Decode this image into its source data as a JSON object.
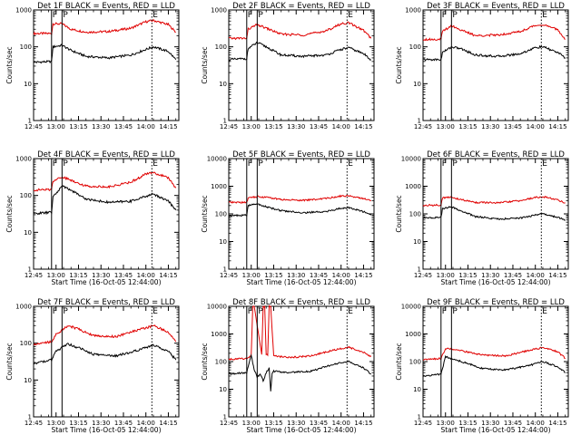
{
  "figure": {
    "n_panels": 9,
    "colors": {
      "events": "#000000",
      "lld": "#e00000",
      "background": "#ffffff",
      "axes": "#000000"
    },
    "stroke_style": {
      "marker_lines_F_P": "solid",
      "marker_line_E": "dotted"
    }
  },
  "chart_data": [
    {
      "type": "line",
      "title": "Det 1F BLACK = Events, RED = LLD",
      "xlabel": "",
      "ylabel": "Counts/sec",
      "x_ticks": [
        "12:45",
        "13:00",
        "13:15",
        "13:30",
        "13:45",
        "14:00",
        "14:15"
      ],
      "xlim": [
        "12:45",
        "14:22"
      ],
      "y_scale": "log",
      "ylim": [
        1,
        1000
      ],
      "y_ticks": [
        "1",
        "10",
        "100",
        "1000"
      ],
      "markers": [
        {
          "label": "F",
          "time": "12:57"
        },
        {
          "label": "P",
          "time": "13:04"
        },
        {
          "label": "E",
          "time": "14:04"
        }
      ],
      "series": [
        {
          "x": [
            "12:45",
            "12:57",
            "12:58",
            "13:04",
            "13:10",
            "13:20",
            "13:35",
            "13:50",
            "14:00",
            "14:05",
            "14:15",
            "14:20"
          ],
          "values": [
            230,
            230,
            420,
            420,
            300,
            250,
            260,
            320,
            480,
            520,
            400,
            250
          ]
        },
        {
          "x": [
            "12:45",
            "12:57",
            "12:58",
            "13:04",
            "13:10",
            "13:20",
            "13:35",
            "13:50",
            "14:00",
            "14:05",
            "14:15",
            "14:20"
          ],
          "values": [
            38,
            40,
            100,
            110,
            80,
            55,
            50,
            60,
            85,
            100,
            75,
            45
          ]
        }
      ]
    },
    {
      "type": "line",
      "title": "Det 2F BLACK = Events, RED = LLD",
      "xlabel": "",
      "ylabel": "Counts/sec",
      "x_ticks": [
        "12:45",
        "13:00",
        "13:15",
        "13:30",
        "13:45",
        "14:00",
        "14:15"
      ],
      "xlim": [
        "12:45",
        "14:22"
      ],
      "y_scale": "log",
      "ylim": [
        1,
        1000
      ],
      "y_ticks": [
        "1",
        "10",
        "100",
        "1000"
      ],
      "markers": [
        {
          "label": "F",
          "time": "12:57"
        },
        {
          "label": "P",
          "time": "13:04"
        },
        {
          "label": "E",
          "time": "14:04"
        }
      ],
      "series": [
        {
          "x": [
            "12:45",
            "12:57",
            "12:58",
            "13:04",
            "13:10",
            "13:20",
            "13:35",
            "13:50",
            "14:00",
            "14:05",
            "14:15",
            "14:20"
          ],
          "values": [
            170,
            170,
            300,
            400,
            320,
            220,
            210,
            270,
            420,
            450,
            280,
            170
          ]
        },
        {
          "x": [
            "12:45",
            "12:57",
            "12:58",
            "13:04",
            "13:10",
            "13:20",
            "13:35",
            "13:50",
            "14:00",
            "14:05",
            "14:15",
            "14:20"
          ],
          "values": [
            45,
            48,
            90,
            130,
            100,
            60,
            55,
            60,
            85,
            95,
            65,
            45
          ]
        }
      ]
    },
    {
      "type": "line",
      "title": "Det 3F BLACK = Events, RED = LLD",
      "xlabel": "",
      "ylabel": "Counts/sec",
      "x_ticks": [
        "12:45",
        "13:00",
        "13:15",
        "13:30",
        "13:45",
        "14:00",
        "14:15"
      ],
      "xlim": [
        "12:45",
        "14:22"
      ],
      "y_scale": "log",
      "ylim": [
        1,
        1000
      ],
      "y_ticks": [
        "1",
        "10",
        "100",
        "1000"
      ],
      "markers": [
        {
          "label": "F",
          "time": "12:57"
        },
        {
          "label": "P",
          "time": "13:04"
        },
        {
          "label": "E",
          "time": "14:04"
        }
      ],
      "series": [
        {
          "x": [
            "12:45",
            "12:57",
            "12:58",
            "13:04",
            "13:10",
            "13:20",
            "13:35",
            "13:50",
            "14:00",
            "14:05",
            "14:15",
            "14:20"
          ],
          "values": [
            160,
            160,
            260,
            380,
            290,
            200,
            210,
            260,
            380,
            400,
            290,
            160
          ]
        },
        {
          "x": [
            "12:45",
            "12:57",
            "12:58",
            "13:04",
            "13:10",
            "13:20",
            "13:35",
            "13:50",
            "14:00",
            "14:05",
            "14:15",
            "14:20"
          ],
          "values": [
            45,
            45,
            70,
            100,
            90,
            60,
            55,
            65,
            95,
            100,
            70,
            50
          ]
        }
      ]
    },
    {
      "type": "line",
      "title": "Det 4F BLACK = Events, RED = LLD",
      "xlabel": "Start Time (16-Oct-05 12:44:00)",
      "ylabel": "Counts/sec",
      "x_ticks": [
        "12:45",
        "13:00",
        "13:15",
        "13:30",
        "13:45",
        "14:00",
        "14:15"
      ],
      "xlim": [
        "12:45",
        "14:22"
      ],
      "y_scale": "log",
      "ylim": [
        1,
        1000
      ],
      "y_ticks": [
        "1",
        "10",
        "100",
        "1000"
      ],
      "markers": [
        {
          "label": "F",
          "time": "12:57"
        },
        {
          "label": "P",
          "time": "13:04"
        },
        {
          "label": "E",
          "time": "14:04"
        }
      ],
      "series": [
        {
          "x": [
            "12:45",
            "12:57",
            "12:58",
            "13:04",
            "13:10",
            "13:20",
            "13:35",
            "13:50",
            "14:00",
            "14:05",
            "14:15",
            "14:20"
          ],
          "values": [
            140,
            145,
            250,
            320,
            260,
            180,
            170,
            230,
            380,
            420,
            300,
            160
          ]
        },
        {
          "x": [
            "12:45",
            "12:57",
            "12:58",
            "13:04",
            "13:10",
            "13:20",
            "13:35",
            "13:50",
            "14:00",
            "14:05",
            "14:15",
            "14:20"
          ],
          "values": [
            32,
            35,
            90,
            180,
            140,
            80,
            65,
            70,
            95,
            110,
            70,
            40
          ]
        }
      ]
    },
    {
      "type": "line",
      "title": "Det 5F BLACK = Events, RED = LLD",
      "xlabel": "Start Time (16-Oct-05 12:44:00)",
      "ylabel": "Counts/sec",
      "x_ticks": [
        "12:45",
        "13:00",
        "13:15",
        "13:30",
        "13:45",
        "14:00",
        "14:15"
      ],
      "xlim": [
        "12:45",
        "14:22"
      ],
      "y_scale": "log",
      "ylim": [
        1,
        10000
      ],
      "y_ticks": [
        "1",
        "10",
        "100",
        "1000",
        "10000"
      ],
      "markers": [
        {
          "label": "F",
          "time": "12:57"
        },
        {
          "label": "P",
          "time": "13:04"
        },
        {
          "label": "E",
          "time": "14:04"
        }
      ],
      "series": [
        {
          "x": [
            "12:45",
            "12:57",
            "12:58",
            "13:04",
            "13:10",
            "13:20",
            "13:35",
            "13:50",
            "14:00",
            "14:05",
            "14:15",
            "14:20"
          ],
          "values": [
            260,
            260,
            380,
            420,
            400,
            330,
            310,
            360,
            440,
            460,
            360,
            300
          ]
        },
        {
          "x": [
            "12:45",
            "12:57",
            "12:58",
            "13:04",
            "13:10",
            "13:20",
            "13:35",
            "13:50",
            "14:00",
            "14:05",
            "14:15",
            "14:20"
          ],
          "values": [
            85,
            90,
            200,
            230,
            180,
            130,
            110,
            120,
            160,
            170,
            120,
            90
          ]
        }
      ]
    },
    {
      "type": "line",
      "title": "Det 6F BLACK = Events, RED = LLD",
      "xlabel": "Start Time (16-Oct-05 12:44:00)",
      "ylabel": "Counts/sec",
      "x_ticks": [
        "12:45",
        "13:00",
        "13:15",
        "13:30",
        "13:45",
        "14:00",
        "14:15"
      ],
      "xlim": [
        "12:45",
        "14:22"
      ],
      "y_scale": "log",
      "ylim": [
        1,
        10000
      ],
      "y_ticks": [
        "1",
        "10",
        "100",
        "1000",
        "10000"
      ],
      "markers": [
        {
          "label": "F",
          "time": "12:57"
        },
        {
          "label": "P",
          "time": "13:04"
        },
        {
          "label": "E",
          "time": "14:04"
        }
      ],
      "series": [
        {
          "x": [
            "12:45",
            "12:57",
            "12:58",
            "13:04",
            "13:10",
            "13:20",
            "13:35",
            "13:50",
            "14:00",
            "14:05",
            "14:15",
            "14:20"
          ],
          "values": [
            200,
            210,
            380,
            400,
            330,
            260,
            250,
            300,
            390,
            420,
            320,
            250
          ]
        },
        {
          "x": [
            "12:45",
            "12:57",
            "12:58",
            "13:04",
            "13:10",
            "13:20",
            "13:35",
            "13:50",
            "14:00",
            "14:05",
            "14:15",
            "14:20"
          ],
          "values": [
            70,
            75,
            150,
            180,
            130,
            80,
            65,
            70,
            90,
            100,
            75,
            60
          ]
        }
      ]
    },
    {
      "type": "line",
      "title": "Det 7F BLACK = Events, RED = LLD",
      "xlabel": "Start Time (16-Oct-05 12:44:00)",
      "ylabel": "Counts/sec",
      "x_ticks": [
        "12:45",
        "13:00",
        "13:15",
        "13:30",
        "13:45",
        "14:00",
        "14:15"
      ],
      "xlim": [
        "12:45",
        "14:22"
      ],
      "y_scale": "log",
      "ylim": [
        1,
        1000
      ],
      "y_ticks": [
        "1",
        "10",
        "100",
        "1000"
      ],
      "markers": [
        {
          "label": "F",
          "time": "12:57"
        },
        {
          "label": "P",
          "time": "13:04"
        },
        {
          "label": "E",
          "time": "14:04"
        }
      ],
      "series": [
        {
          "x": [
            "12:45",
            "12:57",
            "13:00",
            "13:08",
            "13:15",
            "13:25",
            "13:40",
            "13:55",
            "14:05",
            "14:15",
            "14:20"
          ],
          "values": [
            95,
            110,
            170,
            300,
            240,
            160,
            150,
            230,
            300,
            200,
            110
          ]
        },
        {
          "x": [
            "12:45",
            "12:57",
            "13:00",
            "13:08",
            "13:15",
            "13:25",
            "13:40",
            "13:55",
            "14:05",
            "14:15",
            "14:20"
          ],
          "values": [
            28,
            35,
            60,
            95,
            75,
            50,
            45,
            65,
            90,
            60,
            35
          ]
        }
      ]
    },
    {
      "type": "line",
      "title": "Det 8F BLACK = Events, RED = LLD",
      "xlabel": "Start Time (16-Oct-05 12:44:00)",
      "ylabel": "Counts/sec",
      "x_ticks": [
        "12:45",
        "13:00",
        "13:15",
        "13:30",
        "13:45",
        "14:00",
        "14:15"
      ],
      "xlim": [
        "12:45",
        "14:22"
      ],
      "y_scale": "log",
      "ylim": [
        1,
        10000
      ],
      "y_ticks": [
        "1",
        "10",
        "100",
        "1000",
        "10000"
      ],
      "markers": [
        {
          "label": "F",
          "time": "12:57"
        },
        {
          "label": "P",
          "time": "13:04"
        },
        {
          "label": "E",
          "time": "14:04"
        }
      ],
      "series": [
        {
          "x": [
            "12:45",
            "12:57",
            "13:00",
            "13:01",
            "13:02",
            "13:07",
            "13:08",
            "13:09",
            "13:10",
            "13:11",
            "13:12",
            "13:13",
            "13:15",
            "13:25",
            "13:40",
            "13:55",
            "14:05",
            "14:15",
            "14:20"
          ],
          "values": [
            120,
            130,
            170,
            10000,
            10000,
            180,
            10000,
            10000,
            180,
            170,
            10000,
            10000,
            160,
            140,
            160,
            260,
            330,
            220,
            150
          ]
        },
        {
          "x": [
            "12:45",
            "12:57",
            "13:00",
            "13:02",
            "13:04",
            "13:06",
            "13:08",
            "13:10",
            "13:12",
            "13:13",
            "13:14",
            "13:15",
            "13:25",
            "13:40",
            "13:55",
            "14:05",
            "14:15",
            "14:20"
          ],
          "values": [
            35,
            40,
            170,
            50,
            28,
            35,
            20,
            40,
            60,
            8,
            40,
            45,
            40,
            45,
            80,
            100,
            60,
            35
          ]
        }
      ]
    },
    {
      "type": "line",
      "title": "Det 9F BLACK = Events, RED = LLD",
      "xlabel": "Start Time (16-Oct-05 12:44:00)",
      "ylabel": "Counts/sec",
      "x_ticks": [
        "12:45",
        "13:00",
        "13:15",
        "13:30",
        "13:45",
        "14:00",
        "14:15"
      ],
      "xlim": [
        "12:45",
        "14:22"
      ],
      "y_scale": "log",
      "ylim": [
        1,
        10000
      ],
      "y_ticks": [
        "1",
        "10",
        "100",
        "1000",
        "10000"
      ],
      "markers": [
        {
          "label": "F",
          "time": "12:57"
        },
        {
          "label": "P",
          "time": "13:04"
        },
        {
          "label": "E",
          "time": "14:04"
        }
      ],
      "series": [
        {
          "x": [
            "12:45",
            "12:57",
            "13:00",
            "13:08",
            "13:15",
            "13:25",
            "13:40",
            "13:55",
            "14:05",
            "14:15",
            "14:20"
          ],
          "values": [
            120,
            130,
            300,
            260,
            220,
            170,
            160,
            250,
            320,
            230,
            130
          ]
        },
        {
          "x": [
            "12:45",
            "12:57",
            "13:00",
            "13:08",
            "13:15",
            "13:25",
            "13:40",
            "13:55",
            "14:05",
            "14:15",
            "14:20"
          ],
          "values": [
            30,
            35,
            150,
            110,
            85,
            55,
            50,
            70,
            100,
            65,
            40
          ]
        }
      ]
    }
  ]
}
